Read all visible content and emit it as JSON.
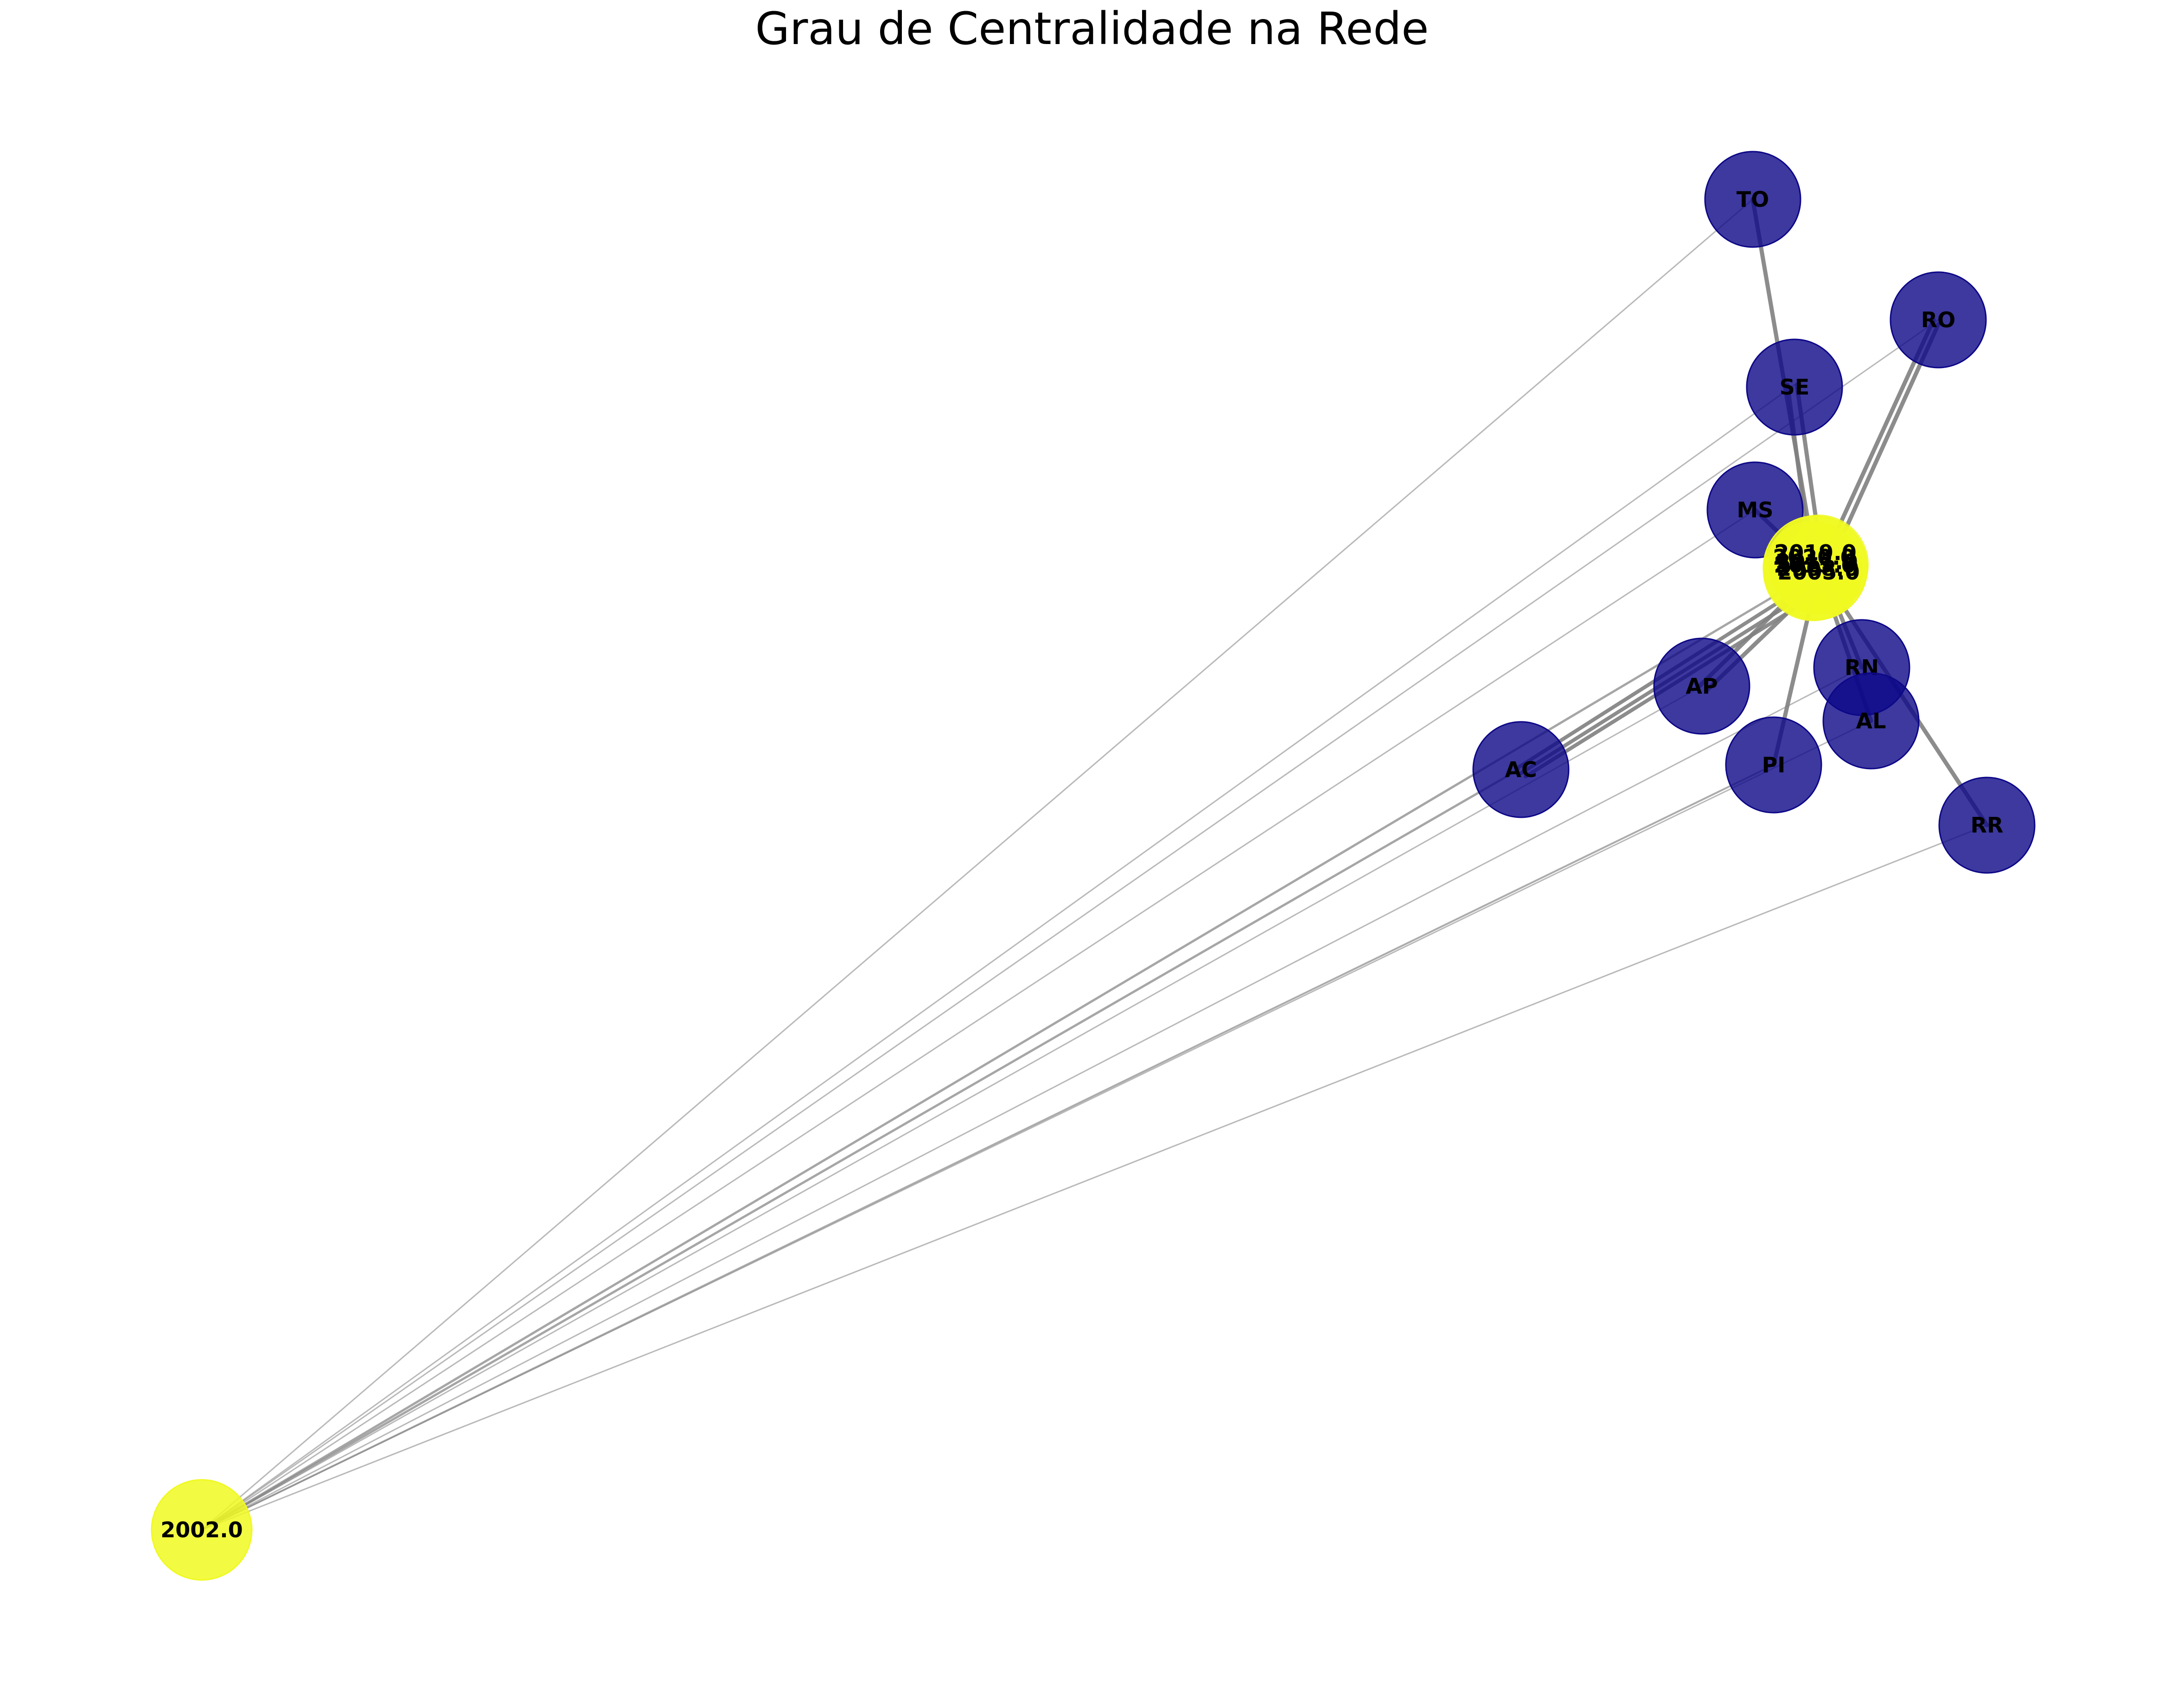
{
  "title": "Grau de Centralidade na Rede",
  "colors": {
    "hub": "#f0f921",
    "state": "#0d0887",
    "edge": "#808080",
    "label": "#000000"
  },
  "nodes": {
    "hub_2002": {
      "label": "2002.0",
      "color": "#f0f921"
    },
    "hub_cluster": {
      "labels": [
        "2019.0",
        "2020.0",
        "2011.0",
        "2015.0",
        "2008.0",
        "2005.0"
      ],
      "color": "#f0f921"
    },
    "TO": {
      "label": "TO",
      "color": "#0d0887"
    },
    "RO": {
      "label": "RO",
      "color": "#0d0887"
    },
    "SE": {
      "label": "SE",
      "color": "#0d0887"
    },
    "MS": {
      "label": "MS",
      "color": "#0d0887"
    },
    "RN": {
      "label": "RN",
      "color": "#0d0887"
    },
    "AP": {
      "label": "AP",
      "color": "#0d0887"
    },
    "AL": {
      "label": "AL",
      "color": "#0d0887"
    },
    "AC": {
      "label": "AC",
      "color": "#0d0887"
    },
    "PI": {
      "label": "PI",
      "color": "#0d0887"
    },
    "RR": {
      "label": "RR",
      "color": "#0d0887"
    }
  }
}
